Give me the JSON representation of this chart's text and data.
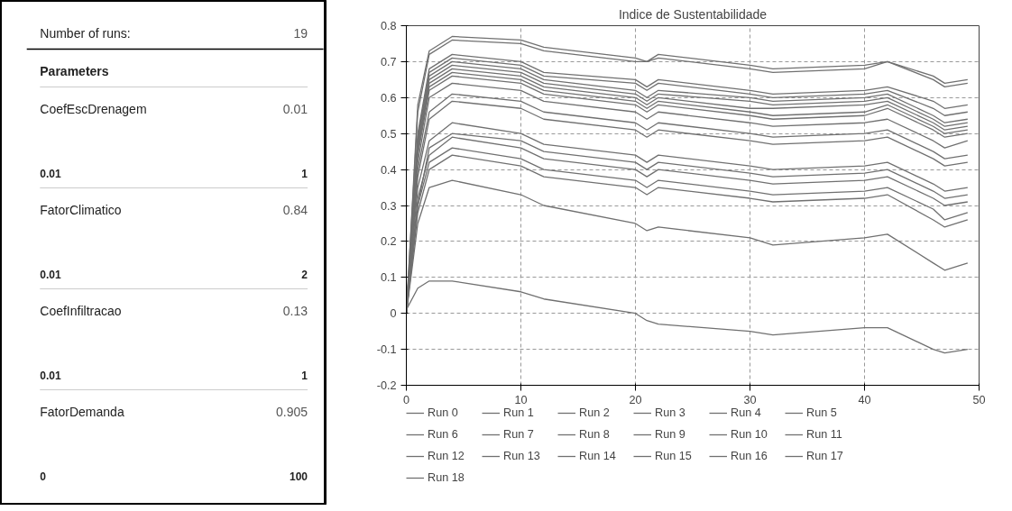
{
  "chart_data": [
    {
      "type": "other",
      "annotations": [
        "Number of runs:",
        "19",
        "Parameters",
        "CoefEscDrenagem",
        "0.01",
        "0.01",
        "1",
        "FatorClimatico",
        "0.84",
        "0.01",
        "2",
        "CoefInfiltracao",
        "0.13",
        "0.01",
        "1",
        "FatorDemanda",
        "0.905",
        "0",
        "100"
      ]
    },
    {
      "type": "line",
      "title": "Indice de Sustentabilidade",
      "x": [
        0,
        1,
        2,
        4,
        10,
        12,
        20,
        21,
        22,
        30,
        32,
        40,
        42,
        46,
        47,
        49
      ],
      "xlim": [
        0,
        50
      ],
      "xticks": [
        0,
        10,
        20,
        30,
        40,
        50
      ],
      "ylim": [
        -0.2,
        0.8
      ],
      "yticks": [
        {
          "value": -0.2,
          "label": "-0.2"
        },
        {
          "value": -0.1,
          "label": "-0.1"
        },
        0,
        0.1,
        0.2,
        0.3,
        0.4,
        0.5,
        0.6,
        0.7,
        0.8
      ],
      "grid": true,
      "legend": "bottom",
      "line_style": "solid",
      "series": [
        {
          "name": "Run 0",
          "color": "#707070",
          "values": [
            0,
            0.58,
            0.73,
            0.77,
            0.76,
            0.74,
            0.71,
            0.7,
            0.72,
            0.69,
            0.68,
            0.69,
            0.7,
            0.66,
            0.64,
            0.65
          ]
        },
        {
          "name": "Run 1",
          "color": "#707070",
          "values": [
            0,
            0.56,
            0.72,
            0.76,
            0.75,
            0.73,
            0.7,
            0.7,
            0.71,
            0.68,
            0.67,
            0.68,
            0.7,
            0.65,
            0.63,
            0.64
          ]
        },
        {
          "name": "Run 2",
          "color": "#707070",
          "values": [
            0,
            0.5,
            0.68,
            0.72,
            0.7,
            0.67,
            0.65,
            0.63,
            0.65,
            0.62,
            0.61,
            0.62,
            0.63,
            0.59,
            0.57,
            0.58
          ]
        },
        {
          "name": "Run 3",
          "color": "#707070",
          "values": [
            0,
            0.49,
            0.67,
            0.71,
            0.69,
            0.66,
            0.64,
            0.62,
            0.64,
            0.61,
            0.6,
            0.61,
            0.62,
            0.57,
            0.55,
            0.56
          ]
        },
        {
          "name": "Run 4",
          "color": "#707070",
          "values": [
            0,
            0.48,
            0.66,
            0.7,
            0.68,
            0.65,
            0.62,
            0.6,
            0.62,
            0.6,
            0.59,
            0.6,
            0.61,
            0.55,
            0.53,
            0.54
          ]
        },
        {
          "name": "Run 5",
          "color": "#707070",
          "values": [
            0,
            0.47,
            0.65,
            0.69,
            0.67,
            0.64,
            0.61,
            0.59,
            0.61,
            0.59,
            0.58,
            0.59,
            0.6,
            0.54,
            0.52,
            0.53
          ]
        },
        {
          "name": "Run 6",
          "color": "#707070",
          "values": [
            0,
            0.46,
            0.64,
            0.68,
            0.66,
            0.63,
            0.6,
            0.58,
            0.6,
            0.57,
            0.57,
            0.58,
            0.59,
            0.53,
            0.51,
            0.52
          ]
        },
        {
          "name": "Run 7",
          "color": "#707070",
          "values": [
            0,
            0.45,
            0.63,
            0.67,
            0.65,
            0.62,
            0.59,
            0.57,
            0.59,
            0.56,
            0.55,
            0.56,
            0.58,
            0.52,
            0.5,
            0.51
          ]
        },
        {
          "name": "Run 8",
          "color": "#707070",
          "values": [
            0,
            0.44,
            0.62,
            0.66,
            0.64,
            0.61,
            0.58,
            0.56,
            0.58,
            0.55,
            0.54,
            0.55,
            0.57,
            0.51,
            0.49,
            0.5
          ]
        },
        {
          "name": "Run 9",
          "color": "#707070",
          "values": [
            0,
            0.42,
            0.6,
            0.64,
            0.62,
            0.59,
            0.56,
            0.54,
            0.56,
            0.53,
            0.52,
            0.53,
            0.54,
            0.48,
            0.46,
            0.48
          ]
        },
        {
          "name": "Run 10",
          "color": "#707070",
          "values": [
            0,
            0.4,
            0.56,
            0.61,
            0.59,
            0.56,
            0.53,
            0.51,
            0.53,
            0.5,
            0.49,
            0.5,
            0.51,
            0.45,
            0.43,
            0.44
          ]
        },
        {
          "name": "Run 11",
          "color": "#707070",
          "values": [
            0,
            0.38,
            0.54,
            0.59,
            0.57,
            0.54,
            0.51,
            0.49,
            0.51,
            0.48,
            0.47,
            0.48,
            0.49,
            0.43,
            0.41,
            0.42
          ]
        },
        {
          "name": "Run 12",
          "color": "#707070",
          "values": [
            0,
            0.35,
            0.48,
            0.53,
            0.5,
            0.47,
            0.44,
            0.42,
            0.44,
            0.41,
            0.4,
            0.41,
            0.42,
            0.36,
            0.34,
            0.35
          ]
        },
        {
          "name": "Run 13",
          "color": "#707070",
          "values": [
            0,
            0.32,
            0.44,
            0.49,
            0.46,
            0.43,
            0.4,
            0.38,
            0.4,
            0.37,
            0.36,
            0.37,
            0.38,
            0.32,
            0.3,
            0.31
          ]
        },
        {
          "name": "Run 14",
          "color": "#707070",
          "values": [
            0,
            0.3,
            0.42,
            0.46,
            0.43,
            0.4,
            0.37,
            0.35,
            0.37,
            0.34,
            0.33,
            0.34,
            0.35,
            0.29,
            0.26,
            0.28
          ]
        },
        {
          "name": "Run 15",
          "color": "#707070",
          "values": [
            0,
            0.28,
            0.4,
            0.44,
            0.41,
            0.38,
            0.35,
            0.33,
            0.35,
            0.32,
            0.31,
            0.32,
            0.33,
            0.26,
            0.24,
            0.26
          ]
        },
        {
          "name": "Run 16",
          "color": "#707070",
          "values": [
            0,
            0.25,
            0.35,
            0.37,
            0.33,
            0.3,
            0.25,
            0.23,
            0.24,
            0.21,
            0.19,
            0.21,
            0.22,
            0.14,
            0.12,
            0.14
          ]
        },
        {
          "name": "Run 17",
          "color": "#707070",
          "values": [
            0.01,
            0.07,
            0.09,
            0.09,
            0.06,
            0.04,
            0.0,
            -0.02,
            -0.03,
            -0.05,
            -0.06,
            -0.04,
            -0.04,
            -0.1,
            -0.11,
            -0.1
          ]
        },
        {
          "name": "Run 18",
          "color": "#707070",
          "values": [
            0,
            0.3,
            0.46,
            0.5,
            0.48,
            0.45,
            0.42,
            0.4,
            0.42,
            0.39,
            0.38,
            0.39,
            0.4,
            0.34,
            0.32,
            0.33
          ]
        }
      ]
    }
  ]
}
